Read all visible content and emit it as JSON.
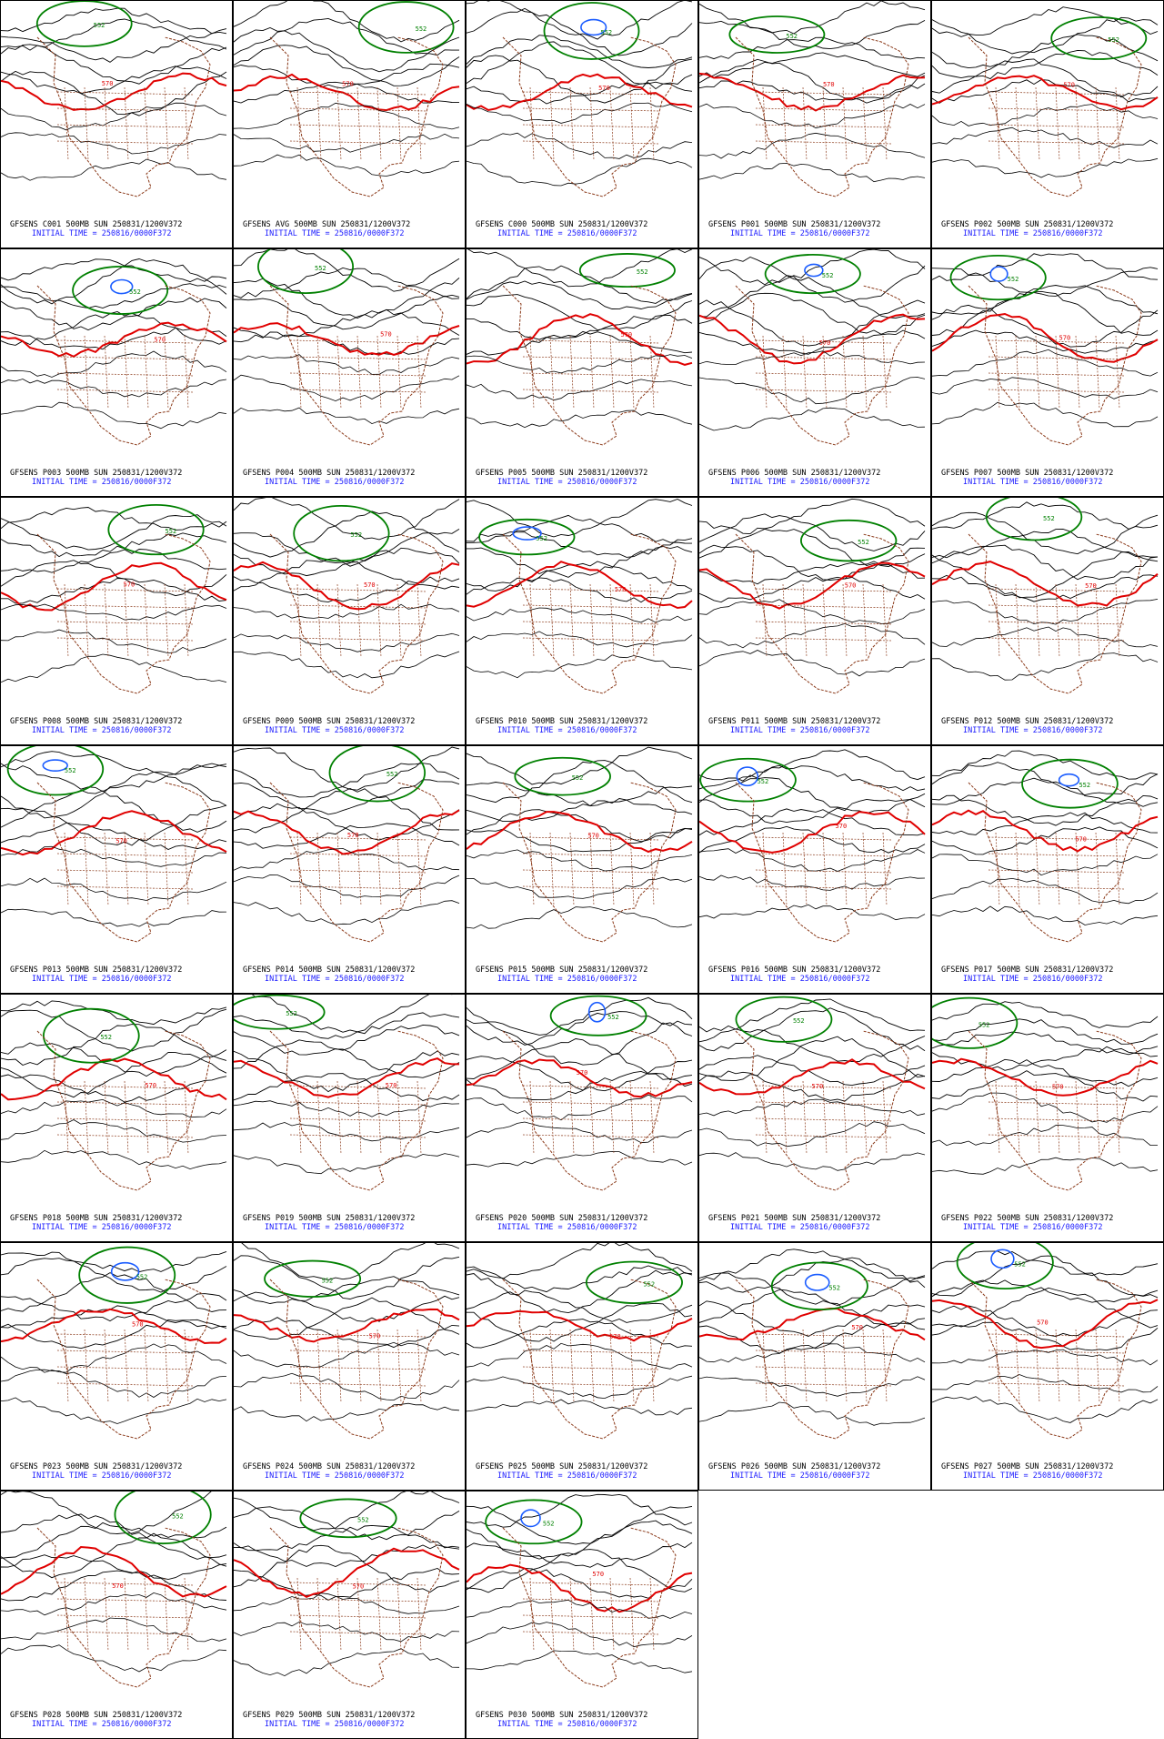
{
  "page": {
    "background": "#ffffff"
  },
  "colors": {
    "contour": "#000000",
    "contour_570": "#e00000",
    "contour_552": "#008000",
    "contour_low": "#1a5cff",
    "coastline": "#8b3a1a",
    "caption_primary": "#000000",
    "caption_secondary": "#1a1aff"
  },
  "contour_labels": {
    "red": "570",
    "green": "552"
  },
  "caption_common": {
    "level": "500MB",
    "valid": "SUN 250831/1200V372",
    "initial": "INITIAL TIME = 250816/0000F372"
  },
  "panels": [
    {
      "id": "C001",
      "line1": "GFSENS C001 500MB SUN 250831/1200V372",
      "line2": "INITIAL TIME = 250816/0000F372"
    },
    {
      "id": "AVG",
      "line1": "GFSENS AVG 500MB SUN 250831/1200V372",
      "line2": "INITIAL TIME = 250816/0000F372"
    },
    {
      "id": "C000",
      "line1": "GFSENS C000 500MB SUN 250831/1200V372",
      "line2": "INITIAL TIME = 250816/0000F372"
    },
    {
      "id": "P001",
      "line1": "GFSENS P001 500MB SUN 250831/1200V372",
      "line2": "INITIAL TIME = 250816/0000F372"
    },
    {
      "id": "P002",
      "line1": "GFSENS P002 500MB SUN 250831/1200V372",
      "line2": "INITIAL TIME = 250816/0000F372"
    },
    {
      "id": "P003",
      "line1": "GFSENS P003 500MB SUN 250831/1200V372",
      "line2": "INITIAL TIME = 250816/0000F372"
    },
    {
      "id": "P004",
      "line1": "GFSENS P004 500MB SUN 250831/1200V372",
      "line2": "INITIAL TIME = 250816/0000F372"
    },
    {
      "id": "P005",
      "line1": "GFSENS P005 500MB SUN 250831/1200V372",
      "line2": "INITIAL TIME = 250816/0000F372"
    },
    {
      "id": "P006",
      "line1": "GFSENS P006 500MB SUN 250831/1200V372",
      "line2": "INITIAL TIME = 250816/0000F372"
    },
    {
      "id": "P007",
      "line1": "GFSENS P007 500MB SUN 250831/1200V372",
      "line2": "INITIAL TIME = 250816/0000F372"
    },
    {
      "id": "P008",
      "line1": "GFSENS P008 500MB SUN 250831/1200V372",
      "line2": "INITIAL TIME = 250816/0000F372"
    },
    {
      "id": "P009",
      "line1": "GFSENS P009 500MB SUN 250831/1200V372",
      "line2": "INITIAL TIME = 250816/0000F372"
    },
    {
      "id": "P010",
      "line1": "GFSENS P010 500MB SUN 250831/1200V372",
      "line2": "INITIAL TIME = 250816/0000F372"
    },
    {
      "id": "P011",
      "line1": "GFSENS P011 500MB SUN 250831/1200V372",
      "line2": "INITIAL TIME = 250816/0000F372"
    },
    {
      "id": "P012",
      "line1": "GFSENS P012 500MB SUN 250831/1200V372",
      "line2": "INITIAL TIME = 250816/0000F372"
    },
    {
      "id": "P013",
      "line1": "GFSENS P013 500MB SUN 250831/1200V372",
      "line2": "INITIAL TIME = 250816/0000F372"
    },
    {
      "id": "P014",
      "line1": "GFSENS P014 500MB SUN 250831/1200V372",
      "line2": "INITIAL TIME = 250816/0000F372"
    },
    {
      "id": "P015",
      "line1": "GFSENS P015 500MB SUN 250831/1200V372",
      "line2": "INITIAL TIME = 250816/0000F372"
    },
    {
      "id": "P016",
      "line1": "GFSENS P016 500MB SUN 250831/1200V372",
      "line2": "INITIAL TIME = 250816/0000F372"
    },
    {
      "id": "P017",
      "line1": "GFSENS P017 500MB SUN 250831/1200V372",
      "line2": "INITIAL TIME = 250816/0000F372"
    },
    {
      "id": "P018",
      "line1": "GFSENS P018 500MB SUN 250831/1200V372",
      "line2": "INITIAL TIME = 250816/0000F372"
    },
    {
      "id": "P019",
      "line1": "GFSENS P019 500MB SUN 250831/1200V372",
      "line2": "INITIAL TIME = 250816/0000F372"
    },
    {
      "id": "P020",
      "line1": "GFSENS P020 500MB SUN 250831/1200V372",
      "line2": "INITIAL TIME = 250816/0000F372"
    },
    {
      "id": "P021",
      "line1": "GFSENS P021 500MB SUN 250831/1200V372",
      "line2": "INITIAL TIME = 250816/0000F372"
    },
    {
      "id": "P022",
      "line1": "GFSENS P022 500MB SUN 250831/1200V372",
      "line2": "INITIAL TIME = 250816/0000F372"
    },
    {
      "id": "P023",
      "line1": "GFSENS P023 500MB SUN 250831/1200V372",
      "line2": "INITIAL TIME = 250816/0000F372"
    },
    {
      "id": "P024",
      "line1": "GFSENS P024 500MB SUN 250831/1200V372",
      "line2": "INITIAL TIME = 250816/0000F372"
    },
    {
      "id": "P025",
      "line1": "GFSENS P025 500MB SUN 250831/1200V372",
      "line2": "INITIAL TIME = 250816/0000F372"
    },
    {
      "id": "P026",
      "line1": "GFSENS P026 500MB SUN 250831/1200V372",
      "line2": "INITIAL TIME = 250816/0000F372"
    },
    {
      "id": "P027",
      "line1": "GFSENS P027 500MB SUN 250831/1200V372",
      "line2": "INITIAL TIME = 250816/0000F372"
    },
    {
      "id": "P028",
      "line1": "GFSENS P028 500MB SUN 250831/1200V372",
      "line2": "INITIAL TIME = 250816/0000F372"
    },
    {
      "id": "P029",
      "line1": "GFSENS P029 500MB SUN 250831/1200V372",
      "line2": "INITIAL TIME = 250816/0000F372"
    },
    {
      "id": "P030",
      "line1": "GFSENS P030 500MB SUN 250831/1200V372",
      "line2": "INITIAL TIME = 250816/0000F372"
    }
  ]
}
